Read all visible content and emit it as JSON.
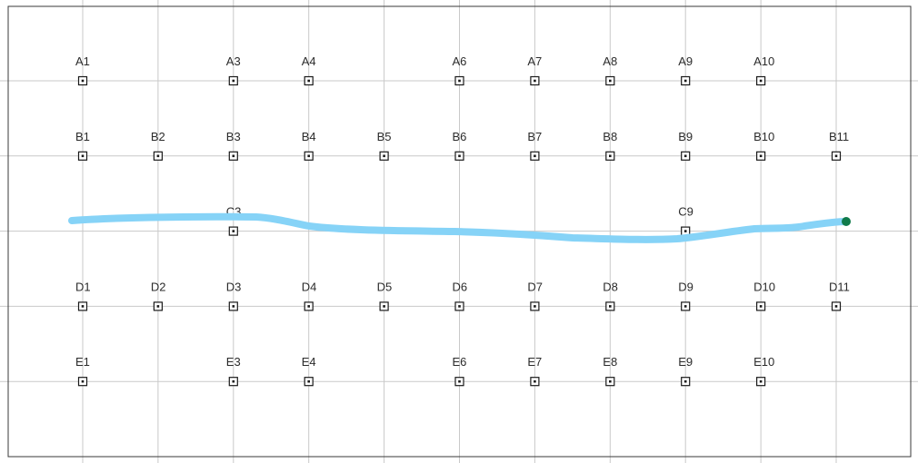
{
  "colors": {
    "background": "#ffffff",
    "grid_line": "#c9c9c9",
    "frame": "#3a3a3a",
    "marker": "#1a1a1a",
    "label": "#2b2b2b",
    "stroke": "#86d3f7",
    "stroke_end": "#0f7a4a"
  },
  "grid": {
    "columns": 11,
    "rows": [
      "A",
      "B",
      "C",
      "D",
      "E"
    ]
  },
  "points": [
    {
      "label": "A1",
      "row": "A",
      "col": 1
    },
    {
      "label": "A3",
      "row": "A",
      "col": 3
    },
    {
      "label": "A4",
      "row": "A",
      "col": 4
    },
    {
      "label": "A6",
      "row": "A",
      "col": 6
    },
    {
      "label": "A7",
      "row": "A",
      "col": 7
    },
    {
      "label": "A8",
      "row": "A",
      "col": 8
    },
    {
      "label": "A9",
      "row": "A",
      "col": 9
    },
    {
      "label": "A10",
      "row": "A",
      "col": 10
    },
    {
      "label": "B1",
      "row": "B",
      "col": 1
    },
    {
      "label": "B2",
      "row": "B",
      "col": 2
    },
    {
      "label": "B3",
      "row": "B",
      "col": 3
    },
    {
      "label": "B4",
      "row": "B",
      "col": 4
    },
    {
      "label": "B5",
      "row": "B",
      "col": 5
    },
    {
      "label": "B6",
      "row": "B",
      "col": 6
    },
    {
      "label": "B7",
      "row": "B",
      "col": 7
    },
    {
      "label": "B8",
      "row": "B",
      "col": 8
    },
    {
      "label": "B9",
      "row": "B",
      "col": 9
    },
    {
      "label": "B10",
      "row": "B",
      "col": 10
    },
    {
      "label": "B11",
      "row": "B",
      "col": 11
    },
    {
      "label": "C3",
      "row": "C",
      "col": 3
    },
    {
      "label": "C9",
      "row": "C",
      "col": 9
    },
    {
      "label": "D1",
      "row": "D",
      "col": 1
    },
    {
      "label": "D2",
      "row": "D",
      "col": 2
    },
    {
      "label": "D3",
      "row": "D",
      "col": 3
    },
    {
      "label": "D4",
      "row": "D",
      "col": 4
    },
    {
      "label": "D5",
      "row": "D",
      "col": 5
    },
    {
      "label": "D6",
      "row": "D",
      "col": 6
    },
    {
      "label": "D7",
      "row": "D",
      "col": 7
    },
    {
      "label": "D8",
      "row": "D",
      "col": 8
    },
    {
      "label": "D9",
      "row": "D",
      "col": 9
    },
    {
      "label": "D10",
      "row": "D",
      "col": 10
    },
    {
      "label": "D11",
      "row": "D",
      "col": 11
    },
    {
      "label": "E1",
      "row": "E",
      "col": 1
    },
    {
      "label": "E3",
      "row": "E",
      "col": 3
    },
    {
      "label": "E4",
      "row": "E",
      "col": 4
    },
    {
      "label": "E6",
      "row": "E",
      "col": 6
    },
    {
      "label": "E7",
      "row": "E",
      "col": 7
    },
    {
      "label": "E8",
      "row": "E",
      "col": 8
    },
    {
      "label": "E9",
      "row": "E",
      "col": 9
    },
    {
      "label": "E10",
      "row": "E",
      "col": 10
    }
  ]
}
